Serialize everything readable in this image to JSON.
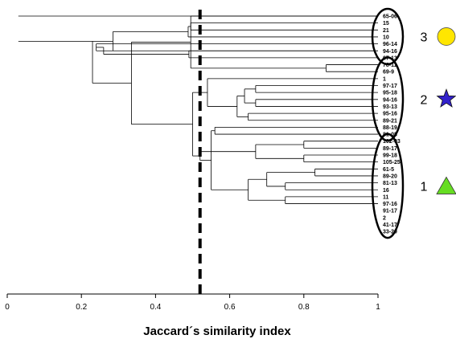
{
  "chart_data": {
    "type": "dendrogram",
    "xlabel": "Jaccard´s similarity index",
    "xlim": [
      0,
      1
    ],
    "x_ticks": [
      "0",
      "0.2",
      "0.4",
      "0.6",
      "0.8",
      "1"
    ],
    "cutoff": 0.52,
    "leaves": [
      "65-06",
      "15",
      "21",
      "10",
      "96-14",
      "94-16",
      "67-13",
      "78-11",
      "69-9",
      "1",
      "97-17",
      "95-18",
      "94-16",
      "93-13",
      "95-16",
      "89-21",
      "88-19",
      "81-08",
      "102-03",
      "89-17",
      "99-18",
      "105-25",
      "61-5",
      "89-20",
      "81-13",
      "16",
      "11",
      "97-16",
      "91-17",
      "2",
      "41-17",
      "33-20"
    ],
    "merges": [
      {
        "a": "L1",
        "b": "L2",
        "sim": 0.495,
        "id": "A"
      },
      {
        "a": "L3",
        "b": "A",
        "sim": 0.488,
        "id": "B"
      },
      {
        "a": "L4",
        "b": "L5",
        "sim": 0.24,
        "id": "C"
      },
      {
        "a": "L5",
        "b": "L6",
        "sim": 0.49,
        "id": "D"
      },
      {
        "a": "C",
        "b": "D",
        "sim": 0.26,
        "id": "E"
      },
      {
        "a": "L7",
        "b": "L8",
        "sim": 0.86,
        "id": "F"
      },
      {
        "a": "L0",
        "b": "F",
        "sim": 0.495,
        "id": "G"
      },
      {
        "a": "L10",
        "b": "L11",
        "sim": 0.67,
        "id": "H"
      },
      {
        "a": "L12",
        "b": "L13",
        "sim": 0.67,
        "id": "I"
      },
      {
        "a": "H",
        "b": "I",
        "sim": 0.64,
        "id": "J"
      },
      {
        "a": "L14",
        "b": "L15",
        "sim": 0.65,
        "id": "K"
      },
      {
        "a": "J",
        "b": "K",
        "sim": 0.62,
        "id": "M"
      },
      {
        "a": "L9",
        "b": "M",
        "sim": 0.54,
        "id": "N"
      },
      {
        "a": "L18",
        "b": "L19",
        "sim": 0.8,
        "id": "O"
      },
      {
        "a": "L20",
        "b": "L21",
        "sim": 0.8,
        "id": "P"
      },
      {
        "a": "O",
        "b": "P",
        "sim": 0.67,
        "id": "Q"
      },
      {
        "a": "L22",
        "b": "L23",
        "sim": 0.83,
        "id": "R"
      },
      {
        "a": "L24",
        "b": "L25",
        "sim": 0.75,
        "id": "S"
      },
      {
        "a": "R",
        "b": "S",
        "sim": 0.7,
        "id": "T"
      },
      {
        "a": "L26",
        "b": "L27",
        "sim": 0.75,
        "id": "U"
      },
      {
        "a": "T",
        "b": "U",
        "sim": 0.65,
        "id": "V"
      },
      {
        "a": "L16",
        "b": "L17",
        "sim": 0.56,
        "id": "W"
      },
      {
        "a": "V",
        "b": "W",
        "sim": 0.55,
        "id": "X"
      },
      {
        "a": "Q",
        "b": "X",
        "sim": 0.52,
        "id": "Y"
      },
      {
        "a": "N",
        "b": "Y",
        "sim": 0.5,
        "id": "Z"
      }
    ],
    "groups": [
      {
        "label": "3",
        "symbol": "circle",
        "color": "#ffe600",
        "from": "65-06",
        "to": "67-13"
      },
      {
        "label": "2",
        "symbol": "star",
        "color": "#3322cc",
        "from": "78-11",
        "to": "81-08"
      },
      {
        "label": "1",
        "symbol": "triangle",
        "color": "#66dd22",
        "from": "102-03",
        "to": "33-20"
      }
    ]
  }
}
